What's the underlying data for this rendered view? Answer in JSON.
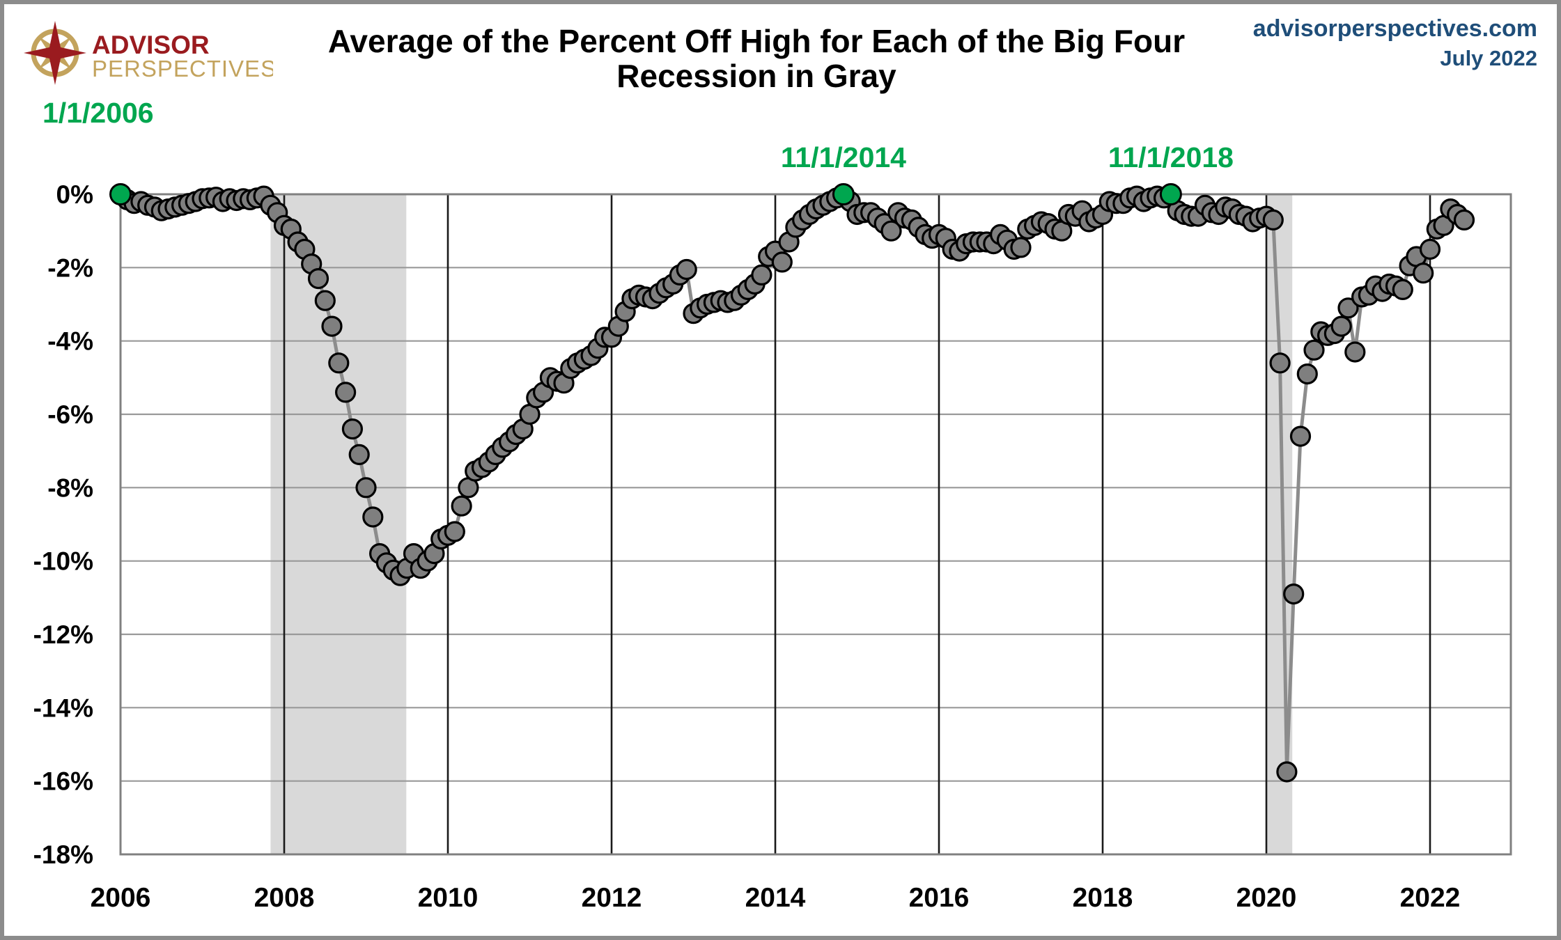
{
  "header": {
    "logo_line1": "ADVISOR",
    "logo_line2": "PERSPECTIVES",
    "title_line1": "Average of the Percent Off High for Each of the Big Four",
    "title_line2": "Recession in Gray",
    "site": "advisorperspectives.com",
    "date": "July 2022"
  },
  "chart_data": {
    "type": "line",
    "title": "Average of the Percent Off High for Each of the Big Four",
    "subtitle": "Recession in Gray",
    "frequency": "monthly",
    "start": {
      "year": 2006,
      "month": 1
    },
    "end": {
      "year": 2022,
      "month": 6
    },
    "unit": "percent off high",
    "ylim": [
      -18,
      0
    ],
    "grid": true,
    "y_tick_labels": [
      "0%",
      "-2%",
      "-4%",
      "-6%",
      "-8%",
      "-10%",
      "-12%",
      "-14%",
      "-16%",
      "-18%"
    ],
    "x_tick_labels": [
      "2006",
      "2008",
      "2010",
      "2012",
      "2014",
      "2016",
      "2018",
      "2020",
      "2022"
    ],
    "values": [
      0,
      -0.15,
      -0.25,
      -0.2,
      -0.3,
      -0.35,
      -0.45,
      -0.4,
      -0.35,
      -0.3,
      -0.25,
      -0.2,
      -0.12,
      -0.1,
      -0.08,
      -0.2,
      -0.12,
      -0.17,
      -0.12,
      -0.15,
      -0.1,
      -0.05,
      -0.3,
      -0.5,
      -0.85,
      -0.95,
      -1.3,
      -1.5,
      -1.9,
      -2.3,
      -2.9,
      -3.6,
      -4.6,
      -5.4,
      -6.4,
      -7.1,
      -8.0,
      -8.8,
      -9.8,
      -10.05,
      -10.25,
      -10.4,
      -10.2,
      -9.8,
      -10.2,
      -10.0,
      -9.8,
      -9.4,
      -9.3,
      -9.2,
      -8.5,
      -8.0,
      -7.55,
      -7.45,
      -7.3,
      -7.1,
      -6.9,
      -6.75,
      -6.55,
      -6.4,
      -6.0,
      -5.55,
      -5.4,
      -5.0,
      -5.1,
      -5.15,
      -4.75,
      -4.6,
      -4.5,
      -4.4,
      -4.2,
      -3.9,
      -3.9,
      -3.6,
      -3.2,
      -2.85,
      -2.75,
      -2.8,
      -2.85,
      -2.7,
      -2.55,
      -2.45,
      -2.2,
      -2.05,
      -3.25,
      -3.1,
      -3.0,
      -2.95,
      -2.9,
      -2.95,
      -2.9,
      -2.75,
      -2.6,
      -2.45,
      -2.2,
      -1.7,
      -1.55,
      -1.85,
      -1.3,
      -0.9,
      -0.7,
      -0.55,
      -0.4,
      -0.3,
      -0.2,
      -0.1,
      0.0,
      -0.2,
      -0.55,
      -0.5,
      -0.5,
      -0.65,
      -0.8,
      -1.0,
      -0.5,
      -0.65,
      -0.7,
      -0.9,
      -1.1,
      -1.2,
      -1.1,
      -1.2,
      -1.5,
      -1.55,
      -1.35,
      -1.3,
      -1.3,
      -1.3,
      -1.35,
      -1.1,
      -1.25,
      -1.5,
      -1.45,
      -0.95,
      -0.85,
      -0.75,
      -0.8,
      -0.95,
      -1.0,
      -0.55,
      -0.6,
      -0.45,
      -0.75,
      -0.65,
      -0.55,
      -0.2,
      -0.25,
      -0.25,
      -0.1,
      -0.05,
      -0.2,
      -0.1,
      -0.05,
      -0.1,
      0.0,
      -0.45,
      -0.55,
      -0.6,
      -0.6,
      -0.3,
      -0.5,
      -0.55,
      -0.35,
      -0.4,
      -0.55,
      -0.6,
      -0.75,
      -0.65,
      -0.6,
      -0.7,
      -4.6,
      -15.75,
      -10.9,
      -6.6,
      -4.9,
      -4.25,
      -3.75,
      -3.85,
      -3.8,
      -3.6,
      -3.1,
      -4.3,
      -2.8,
      -2.75,
      -2.5,
      -2.65,
      -2.45,
      -2.5,
      -2.6,
      -1.95,
      -1.7,
      -2.15,
      -1.5,
      -0.95,
      -0.85,
      -0.4,
      -0.55,
      -0.7
    ],
    "highlight_points": [
      {
        "index": 0,
        "label": "1/1/2006"
      },
      {
        "index": 106,
        "label": "11/1/2014"
      },
      {
        "index": 154,
        "label": "11/1/2018"
      }
    ],
    "recession_bands": [
      {
        "start_month_index": 22.0,
        "end_month_index": 41.9
      },
      {
        "start_month_index": 168.0,
        "end_month_index": 171.8
      }
    ],
    "colors": {
      "line": "#8C8C8C",
      "marker_fill": "#7F7F7F",
      "marker_stroke": "#000000",
      "highlight_green": "#00A64F",
      "recession_band": "#D9D9D9",
      "h_gridline": "#999999",
      "v_gridline": "#1A1A1A",
      "plot_border": "#808080",
      "header_blue": "#1F4E79",
      "logo_maroon": "#9A1B1F",
      "logo_gold": "#C3A35D"
    },
    "legend": "none"
  }
}
